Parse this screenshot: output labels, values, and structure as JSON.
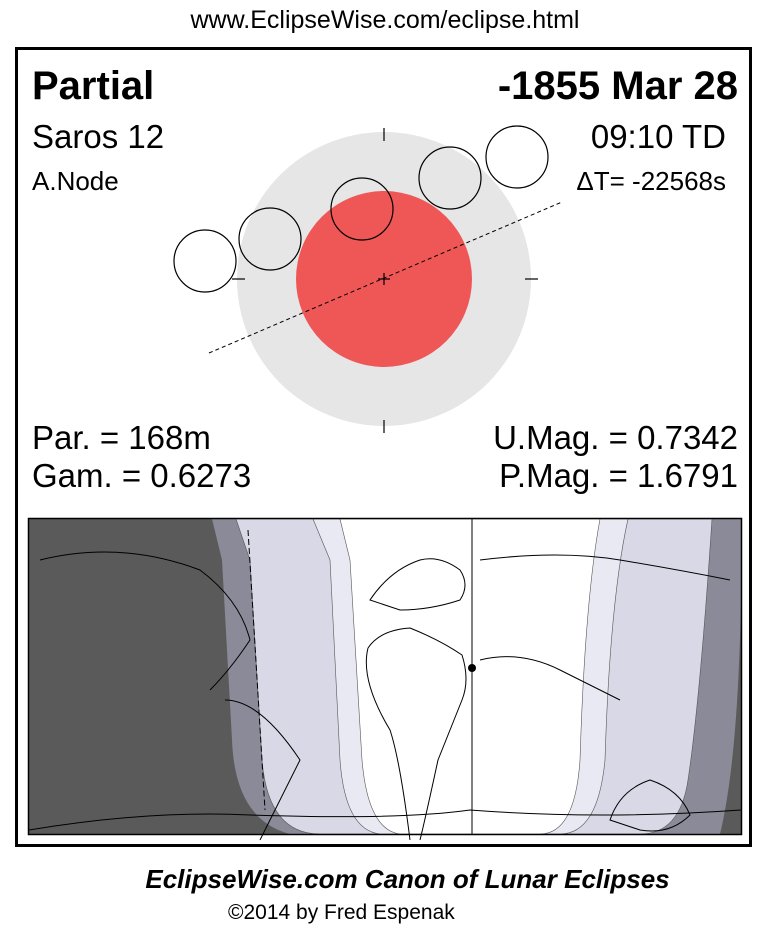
{
  "header": {
    "url": "www.EclipseWise.com/eclipse.html"
  },
  "eclipse": {
    "type": "Partial",
    "date": "-1855 Mar 28",
    "saros": "Saros  12",
    "time": "09:10 TD",
    "node": "A.Node",
    "delta_t": "ΔT= -22568s",
    "duration": "Par. = 168m",
    "gamma": "Gam. = 0.6273",
    "umbral_magnitude": "U.Mag. = 0.7342",
    "penumbral_magnitude": "P.Mag. = 1.6791"
  },
  "colors": {
    "umbra": "#ef5656",
    "penumbra": "#e6e6e6",
    "night": "#5a5a5a",
    "penumbral_zone": "#8a8a98",
    "partial_zone": "#d8d8e6",
    "light_zone": "#e9e9f3"
  },
  "footer": {
    "title": "EclipseWise.com Canon of Lunar Eclipses",
    "copyright": "©2014 by Fred Espenak"
  }
}
